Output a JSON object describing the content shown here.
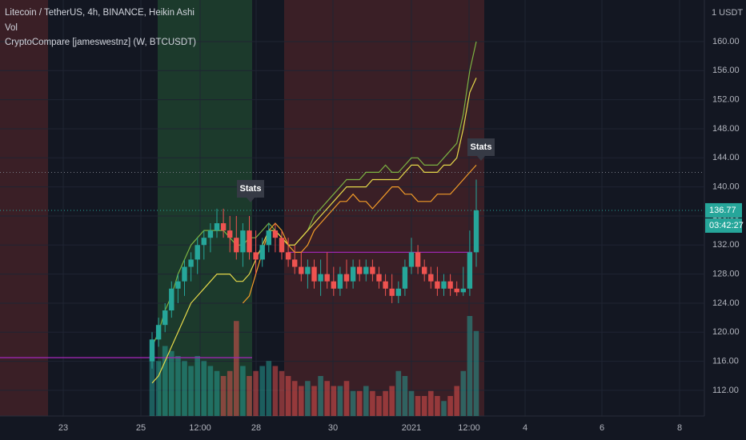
{
  "chart_data": {
    "type": "candlestick",
    "title": "Litecoin / TetherUS, 4h, BINANCE, Heikin Ashi",
    "volume_label": "Vol",
    "indicator_label": "CryptoCompare [jameswestnz] (W, BTCUSDT)",
    "currency": "1 USDT",
    "countdown": "03:42:27",
    "up_color": "#26a69a",
    "down_color": "#ef5350",
    "open": [
      116,
      119,
      121,
      123,
      126,
      127,
      129,
      130,
      132,
      133,
      134,
      135,
      134,
      133,
      131,
      134,
      131,
      130,
      132,
      134,
      133,
      131,
      130,
      129,
      128,
      129,
      127,
      128,
      127,
      126,
      128,
      127,
      129,
      128,
      129,
      128,
      127,
      126,
      125,
      126,
      129,
      131,
      129,
      128,
      127,
      126,
      127,
      126,
      125.5,
      126,
      131
    ],
    "high": [
      120,
      122,
      124,
      127,
      128,
      130,
      131,
      133,
      134,
      135,
      137,
      137,
      136,
      136,
      135,
      136,
      134,
      133,
      135,
      135,
      134,
      133,
      132,
      131,
      130,
      130,
      130,
      131,
      129,
      129,
      130,
      130,
      130,
      130,
      130,
      129,
      128,
      128,
      127,
      130,
      133,
      132,
      130,
      129,
      129,
      128,
      128,
      127,
      129,
      134,
      141
    ],
    "low": [
      115,
      118,
      120,
      122,
      124,
      125,
      127,
      128,
      130,
      131,
      133,
      133,
      131,
      130,
      129,
      130,
      128,
      129,
      131,
      131,
      130,
      129,
      128,
      127,
      126,
      126,
      125,
      126,
      125,
      125,
      126,
      126,
      127,
      127,
      127,
      126,
      125,
      124,
      124,
      125,
      128,
      128,
      127,
      126,
      125,
      125,
      125,
      125,
      125,
      125,
      129
    ],
    "close": [
      119,
      121,
      123,
      126,
      127,
      129,
      130,
      132,
      133,
      134,
      135,
      134,
      133,
      131,
      134,
      131,
      130,
      132,
      134,
      133,
      131,
      130,
      129,
      128,
      129,
      127,
      128,
      127,
      126,
      128,
      127,
      129,
      128,
      129,
      128,
      127,
      126,
      125,
      126,
      129,
      131,
      129,
      128,
      127,
      126,
      127,
      126,
      125.5,
      126,
      131,
      136.77
    ],
    "volume": [
      60,
      55,
      70,
      65,
      60,
      55,
      50,
      60,
      55,
      50,
      45,
      40,
      45,
      95,
      50,
      40,
      45,
      50,
      55,
      50,
      45,
      40,
      35,
      30,
      35,
      30,
      40,
      35,
      30,
      30,
      35,
      25,
      25,
      30,
      25,
      20,
      25,
      30,
      45,
      40,
      25,
      20,
      20,
      25,
      20,
      15,
      20,
      30,
      45,
      100,
      85
    ],
    "volume_lim": [
      0,
      110
    ],
    "ylim": [
      108.47,
      165.72
    ],
    "yticks": [
      {
        "value": 112,
        "label": "112.00"
      },
      {
        "value": 116,
        "label": "116.00"
      },
      {
        "value": 120,
        "label": "120.00"
      },
      {
        "value": 124,
        "label": "124.00"
      },
      {
        "value": 128,
        "label": "128.00"
      },
      {
        "value": 132,
        "label": "132.00"
      },
      {
        "value": 136,
        "label": "136.00"
      },
      {
        "value": 140,
        "label": "140.00"
      },
      {
        "value": 144,
        "label": "144.00"
      },
      {
        "value": 148,
        "label": "148.00"
      },
      {
        "value": 152,
        "label": "152.00"
      },
      {
        "value": 156,
        "label": "156.00"
      },
      {
        "value": 160,
        "label": "160.00"
      }
    ],
    "xticks": [
      "23",
      "25",
      "12:00",
      "28",
      "30",
      "2021",
      "12:00",
      "4",
      "6",
      "8"
    ],
    "lines": [
      {
        "color": "#7cb342",
        "values": [
          118,
          120,
          123,
          125,
          128,
          130,
          132,
          133,
          134,
          134,
          134,
          134,
          133,
          132,
          132,
          133,
          133,
          134,
          135,
          134,
          133,
          132,
          132,
          133,
          134,
          136,
          137,
          138,
          139,
          140,
          141,
          141,
          141,
          142,
          142,
          142,
          143,
          142,
          142,
          143,
          144,
          144,
          143,
          143,
          143,
          144,
          145,
          146,
          150,
          156,
          160
        ]
      },
      {
        "color": "#e6d94a",
        "values": [
          113,
          114,
          116,
          118,
          120,
          122,
          124,
          125,
          126,
          127,
          128,
          128,
          128,
          127,
          127,
          128,
          130,
          132,
          134,
          134,
          133,
          132,
          132,
          133,
          134,
          135,
          136,
          137,
          138,
          139,
          140,
          140,
          140,
          140,
          141,
          141,
          141,
          141,
          141,
          142,
          143,
          143,
          142,
          142,
          142,
          143,
          143,
          144,
          148,
          153,
          155
        ]
      },
      {
        "color": "#f39c28",
        "values": [
          null,
          null,
          null,
          null,
          null,
          null,
          null,
          null,
          null,
          null,
          null,
          null,
          null,
          null,
          124,
          125,
          128,
          131,
          134,
          135,
          134,
          132,
          131,
          131,
          132,
          134,
          135,
          136,
          137,
          138,
          138,
          139,
          138,
          138,
          137,
          138,
          139,
          140,
          140,
          139,
          139,
          138,
          138,
          138,
          139,
          139,
          139,
          140,
          141,
          142,
          143
        ]
      }
    ],
    "levels": [
      131,
      116.5
    ],
    "level_color": "#9c27b0",
    "dotted_levels": [
      142
    ],
    "annotations": [
      "Stats",
      "Stats"
    ]
  }
}
